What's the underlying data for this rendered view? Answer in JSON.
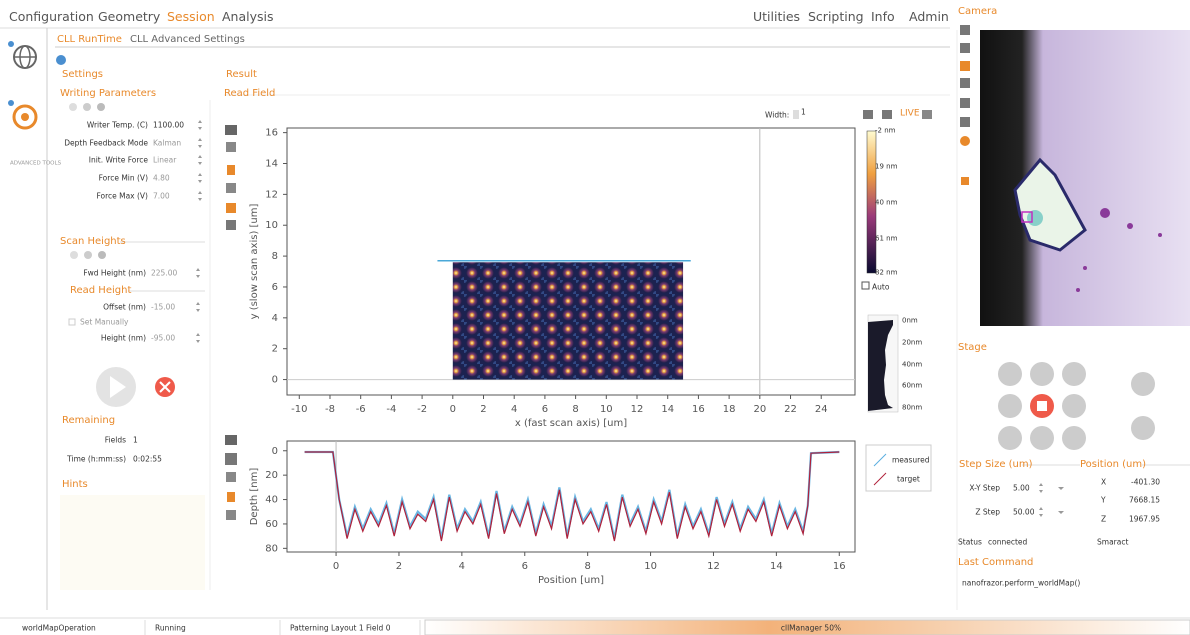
{
  "menu": {
    "left": [
      "Configuration",
      "Geometry",
      "Session",
      "Analysis"
    ],
    "right": [
      "Utilities",
      "Scripting",
      "Info",
      "Admin"
    ]
  },
  "tabs": [
    "CLL RunTime",
    "CLL Advanced Settings"
  ],
  "sidebar": {
    "advanced_tools": "ADVANCED TOOLS"
  },
  "settings": {
    "title": "Settings",
    "writing_parameters": {
      "title": "Writing Parameters",
      "rows": [
        [
          "Writer Temp. (C)",
          "1100.00"
        ],
        [
          "Depth Feedback Mode",
          "Kalman"
        ],
        [
          "Init. Write Force",
          "Linear"
        ],
        [
          "Force Min (V)",
          "4.80"
        ],
        [
          "Force Max (V)",
          "7.00"
        ]
      ]
    },
    "scan_heights": {
      "title": "Scan Heights",
      "rows": [
        [
          "Fwd Height (nm)",
          "225.00"
        ]
      ]
    },
    "read_height": {
      "title": "Read Height",
      "rows": [
        [
          "Offset (nm)",
          "-15.00"
        ],
        [
          "Height (nm)",
          "-95.00"
        ]
      ],
      "set_manually": "Set Manually"
    },
    "remaining": {
      "title": "Remaining",
      "rows": [
        [
          "Fields",
          "1"
        ],
        [
          "Time (h:mm:ss)",
          "0:02:55"
        ]
      ]
    },
    "hints": "Hints"
  },
  "result": {
    "title": "Result",
    "read_field": "Read Field",
    "width_label": "Width:",
    "width_value": "1",
    "live": "LIVE"
  },
  "field_plot": {
    "xlabel": "x (fast scan axis) [um]",
    "ylabel": "y (slow scan axis) [um]",
    "xlim": [
      -10.8,
      26.2
    ],
    "ylim": [
      -1,
      16.3
    ],
    "xticks": [
      -10,
      -8,
      -6,
      -4,
      -2,
      0,
      2,
      4,
      6,
      8,
      10,
      12,
      14,
      16,
      18,
      20,
      22,
      24
    ],
    "yticks": [
      0,
      2,
      4,
      6,
      8,
      10,
      12,
      14,
      16
    ],
    "scan_area": {
      "x": [
        0,
        15
      ],
      "y": [
        0,
        7.6
      ]
    },
    "scan_line": {
      "x": [
        -1,
        15.5
      ],
      "y": 7.7
    },
    "cursor_x": [
      20
    ]
  },
  "colorbar": {
    "labels": [
      "-2 nm",
      "19 nm",
      "40 nm",
      "61 nm",
      "82 nm"
    ],
    "auto": "Auto"
  },
  "histogram": {
    "labels": [
      "0nm",
      "20nm",
      "40nm",
      "60nm",
      "80nm"
    ]
  },
  "profile_plot": {
    "xlabel": "Position [um]",
    "ylabel": "Depth [nm]",
    "xlim": [
      -1.56,
      16.5
    ],
    "ylim": [
      -8,
      83
    ],
    "y_inverted": true,
    "xticks": [
      0,
      2,
      4,
      6,
      8,
      10,
      12,
      14,
      16
    ],
    "yticks": [
      0,
      20,
      40,
      60,
      80
    ],
    "cursor_x": [
      0
    ],
    "x": [
      -1,
      -0.1,
      0.1,
      0.35,
      0.6,
      0.85,
      1.1,
      1.35,
      1.6,
      1.85,
      2.1,
      2.35,
      2.6,
      2.85,
      3.1,
      3.35,
      3.6,
      3.85,
      4.1,
      4.35,
      4.6,
      4.85,
      5.1,
      5.35,
      5.6,
      5.85,
      6.1,
      6.35,
      6.6,
      6.85,
      7.1,
      7.35,
      7.6,
      7.85,
      8.1,
      8.35,
      8.6,
      8.85,
      9.1,
      9.35,
      9.6,
      9.85,
      10.1,
      10.35,
      10.6,
      10.85,
      11.1,
      11.35,
      11.6,
      11.85,
      12.1,
      12.35,
      12.6,
      12.85,
      13.1,
      13.35,
      13.6,
      13.85,
      14.1,
      14.35,
      14.6,
      14.85,
      15.0,
      15.1,
      16
    ],
    "series": [
      {
        "name": "measured",
        "color": "#5aaee0",
        "values": [
          1,
          1,
          40,
          70,
          46,
          64,
          48,
          60,
          43,
          68,
          40,
          62,
          50,
          56,
          38,
          72,
          36,
          64,
          48,
          58,
          42,
          70,
          33,
          66,
          46,
          60,
          40,
          68,
          44,
          62,
          30,
          70,
          38,
          58,
          48,
          64,
          42,
          72,
          36,
          60,
          46,
          66,
          40,
          58,
          32,
          70,
          44,
          62,
          48,
          68,
          38,
          60,
          42,
          64,
          46,
          56,
          40,
          68,
          43,
          62,
          48,
          66,
          45,
          2,
          1
        ]
      },
      {
        "name": "target",
        "color": "#b0203a",
        "values": [
          1,
          1,
          40,
          72,
          48,
          66,
          50,
          62,
          45,
          70,
          42,
          64,
          52,
          58,
          40,
          74,
          38,
          66,
          50,
          60,
          44,
          72,
          35,
          68,
          48,
          62,
          42,
          70,
          46,
          64,
          32,
          72,
          40,
          60,
          50,
          66,
          44,
          74,
          38,
          62,
          48,
          68,
          42,
          60,
          34,
          72,
          46,
          64,
          50,
          70,
          40,
          62,
          44,
          66,
          48,
          58,
          42,
          70,
          45,
          64,
          50,
          68,
          45,
          2,
          1
        ]
      }
    ]
  },
  "camera": {
    "title": "Camera"
  },
  "stage": {
    "title": "Stage",
    "step_size": {
      "title": "Step Size (um)",
      "rows": [
        [
          "X-Y Step",
          "5.00"
        ],
        [
          "Z Step",
          "50.00"
        ]
      ]
    },
    "position": {
      "title": "Position (um)",
      "rows": [
        [
          "X",
          "-401.30"
        ],
        [
          "Y",
          "7668.15"
        ],
        [
          "Z",
          "1967.95"
        ]
      ]
    },
    "status_label": "Status",
    "status": "connected",
    "controller": "Smaract",
    "last_command": {
      "title": "Last Command",
      "text": "nanofrazor.perform_worldMap()"
    }
  },
  "status_bar": [
    "worldMapOperation",
    "Running",
    "Patterning Layout 1 Field 0",
    "cllManager 50%"
  ]
}
